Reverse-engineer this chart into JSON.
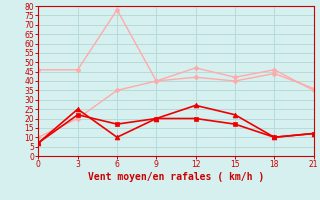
{
  "x": [
    0,
    3,
    6,
    9,
    12,
    15,
    18,
    21
  ],
  "line_light1": [
    46,
    46,
    78,
    40,
    47,
    42,
    46,
    35
  ],
  "line_light2": [
    10,
    20,
    35,
    40,
    42,
    40,
    44,
    36
  ],
  "line_dark1": [
    7,
    25,
    10,
    20,
    27,
    22,
    10,
    12
  ],
  "line_dark2": [
    7,
    22,
    17,
    20,
    20,
    17,
    10,
    12
  ],
  "color_light": "#ffaaaa",
  "color_dark": "#ee0000",
  "xlabel": "Vent moyen/en rafales ( km/h )",
  "ylim": [
    0,
    80
  ],
  "xlim": [
    0,
    21
  ],
  "yticks": [
    0,
    5,
    10,
    15,
    20,
    25,
    30,
    35,
    40,
    45,
    50,
    55,
    60,
    65,
    70,
    75,
    80
  ],
  "xticks": [
    0,
    3,
    6,
    9,
    12,
    15,
    18,
    21
  ],
  "bg_color": "#d6f0ef",
  "grid_color": "#b0d8d8",
  "tick_color": "#cc0000",
  "label_color": "#cc0000"
}
